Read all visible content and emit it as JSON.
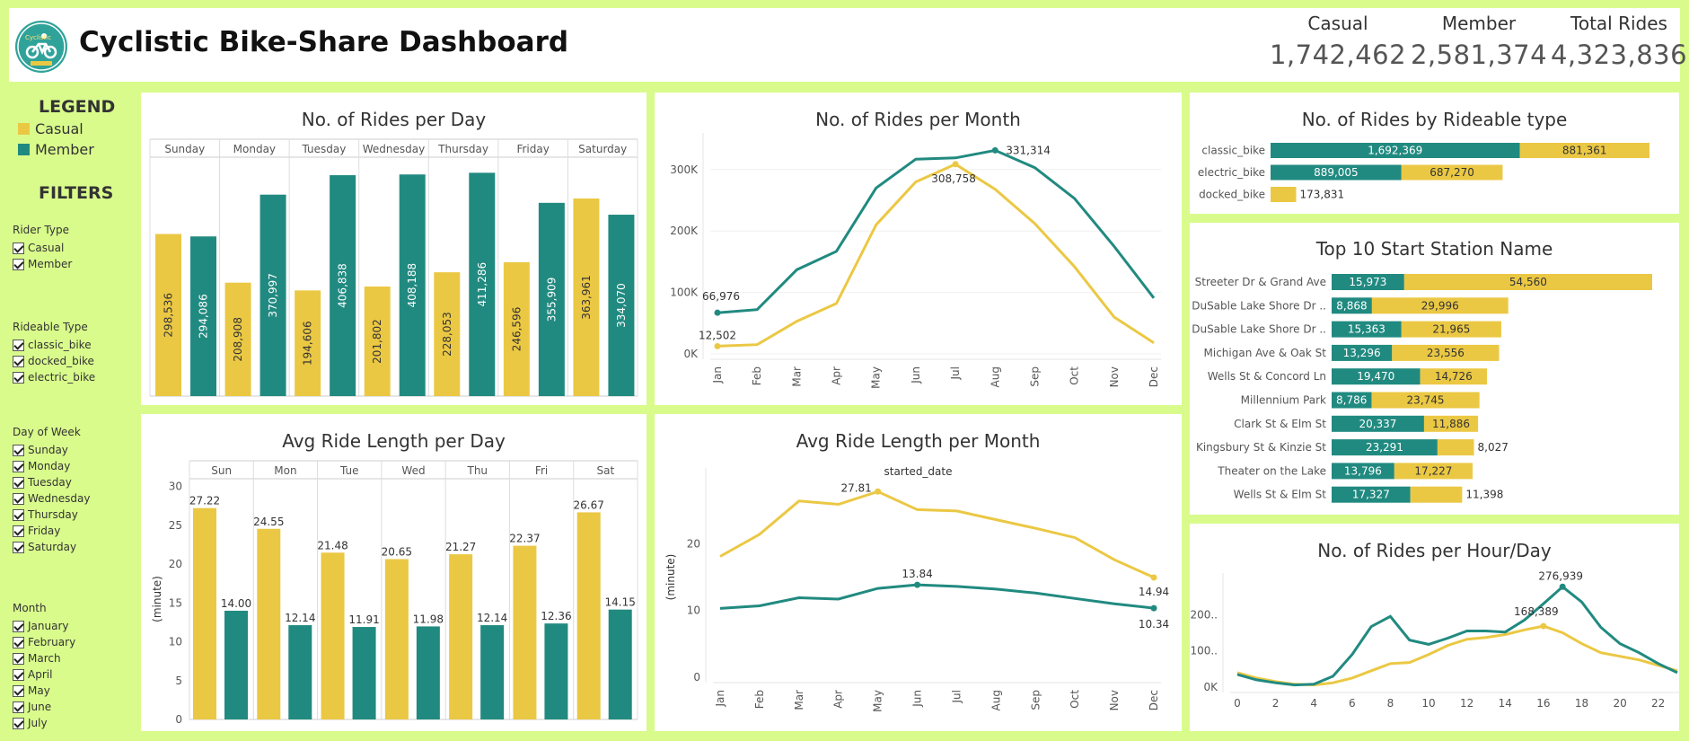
{
  "header": {
    "title": "Cyclistic Bike-Share Dashboard",
    "logo_text": "Cyclistic",
    "kpis": [
      {
        "label": "Casual",
        "value": "1,742,462"
      },
      {
        "label": "Member",
        "value": "2,581,374"
      },
      {
        "label": "Total Rides",
        "value": "4,323,836"
      }
    ]
  },
  "colors": {
    "casual": "#ebc844",
    "member": "#218a80",
    "background": "#d9fb8c"
  },
  "legend": {
    "title": "LEGEND",
    "items": [
      "Casual",
      "Member"
    ]
  },
  "filters": {
    "title": "FILTERS",
    "groups": [
      {
        "title": "Rider Type",
        "items": [
          "Casual",
          "Member"
        ]
      },
      {
        "title": "Rideable Type",
        "items": [
          "classic_bike",
          "docked_bike",
          "electric_bike"
        ]
      },
      {
        "title": "Day of Week",
        "items": [
          "Sunday",
          "Monday",
          "Tuesday",
          "Wednesday",
          "Thursday",
          "Friday",
          "Saturday"
        ]
      },
      {
        "title": "Month",
        "items": [
          "January",
          "February",
          "March",
          "April",
          "May",
          "June",
          "July"
        ]
      }
    ]
  },
  "chart_data": [
    {
      "id": "rides_per_day",
      "type": "bar",
      "title": "No. of Rides per Day",
      "categories": [
        "Sunday",
        "Monday",
        "Tuesday",
        "Wednesday",
        "Thursday",
        "Friday",
        "Saturday"
      ],
      "series": [
        {
          "name": "Casual",
          "values": [
            298536,
            208908,
            194606,
            201802,
            228053,
            246596,
            363961
          ],
          "labels": [
            "298,536",
            "208,908",
            "194,606",
            "201,802",
            "228,053",
            "246,596",
            "363,961"
          ]
        },
        {
          "name": "Member",
          "values": [
            294086,
            370997,
            406838,
            408188,
            411286,
            355909,
            334070
          ],
          "labels": [
            "294,086",
            "370,997",
            "406,838",
            "408,188",
            "411,286",
            "355,909",
            "334,070"
          ]
        }
      ],
      "ylim": [
        0,
        440000
      ]
    },
    {
      "id": "rides_per_month",
      "type": "line",
      "title": "No. of Rides per Month",
      "x": [
        "Jan",
        "Feb",
        "Mar",
        "Apr",
        "May",
        "Jun",
        "Jul",
        "Aug",
        "Sep",
        "Oct",
        "Nov",
        "Dec"
      ],
      "yticks": [
        {
          "v": 0,
          "label": "0K"
        },
        {
          "v": 100000,
          "label": "100K"
        },
        {
          "v": 200000,
          "label": "200K"
        },
        {
          "v": 300000,
          "label": "300K"
        }
      ],
      "ylim": [
        0,
        345000
      ],
      "series": [
        {
          "name": "Casual",
          "values": [
            12502,
            15000,
            53000,
            82000,
            210000,
            280000,
            308758,
            268000,
            212000,
            142000,
            60000,
            18000
          ]
        },
        {
          "name": "Member",
          "values": [
            66976,
            72000,
            137000,
            167000,
            270000,
            317000,
            319000,
            331314,
            303000,
            253000,
            175000,
            91000
          ]
        }
      ],
      "annotations": [
        {
          "series": "Member",
          "index": 0,
          "label": "66,976"
        },
        {
          "series": "Casual",
          "index": 0,
          "label": "12,502"
        },
        {
          "series": "Member",
          "index": 7,
          "label": "331,314"
        },
        {
          "series": "Casual",
          "index": 6,
          "label": "308,758"
        }
      ]
    },
    {
      "id": "rides_by_rideable",
      "type": "bar",
      "orientation": "horizontal",
      "stacked": true,
      "title": "No. of Rides by Rideable type",
      "categories": [
        "classic_bike",
        "electric_bike",
        "docked_bike"
      ],
      "series": [
        {
          "name": "Member",
          "values": [
            1692369,
            889005,
            0
          ],
          "labels": [
            "1,692,369",
            "889,005",
            ""
          ]
        },
        {
          "name": "Casual",
          "values": [
            881361,
            687270,
            173831
          ],
          "labels": [
            "881,361",
            "687,270",
            "173,831"
          ]
        }
      ]
    },
    {
      "id": "top10_start_stations",
      "type": "bar",
      "orientation": "horizontal",
      "stacked": true,
      "title": "Top 10 Start Station Name",
      "categories": [
        "Streeter Dr & Grand Ave",
        "DuSable Lake Shore Dr ..",
        "DuSable Lake Shore Dr ..",
        "Michigan Ave & Oak St",
        "Wells St & Concord Ln",
        "Millennium Park",
        "Clark St & Elm St",
        "Kingsbury St & Kinzie St",
        "Theater on the Lake",
        "Wells St & Elm St"
      ],
      "series": [
        {
          "name": "Member",
          "values": [
            15973,
            8868,
            15363,
            13296,
            19470,
            8786,
            20337,
            23291,
            13796,
            17327
          ],
          "labels": [
            "15,973",
            "8,868",
            "15,363",
            "13,296",
            "19,470",
            "8,786",
            "20,337",
            "23,291",
            "13,796",
            "17,327"
          ]
        },
        {
          "name": "Casual",
          "values": [
            54560,
            29996,
            21965,
            23556,
            14726,
            23745,
            11886,
            8027,
            17227,
            11398
          ],
          "labels": [
            "54,560",
            "29,996",
            "21,965",
            "23,556",
            "14,726",
            "23,745",
            "11,886",
            "8,027",
            "17,227",
            "11,398"
          ]
        }
      ]
    },
    {
      "id": "avg_ride_length_day",
      "type": "bar",
      "title": "Avg Ride Length per Day",
      "ylabel": "(minute)",
      "categories": [
        "Sun",
        "Mon",
        "Tue",
        "Wed",
        "Thu",
        "Fri",
        "Sat"
      ],
      "series": [
        {
          "name": "Casual",
          "values": [
            27.22,
            24.55,
            21.48,
            20.65,
            21.27,
            22.37,
            26.67
          ],
          "labels": [
            "27.22",
            "24.55",
            "21.48",
            "20.65",
            "21.27",
            "22.37",
            "26.67"
          ]
        },
        {
          "name": "Member",
          "values": [
            14.0,
            12.14,
            11.91,
            11.98,
            12.14,
            12.36,
            14.15
          ],
          "labels": [
            "14.00",
            "12.14",
            "11.91",
            "11.98",
            "12.14",
            "12.36",
            "14.15"
          ]
        }
      ],
      "yticks": [
        0,
        5,
        10,
        15,
        20,
        25,
        30
      ],
      "ylim": [
        0,
        31
      ]
    },
    {
      "id": "avg_ride_length_month",
      "type": "line",
      "title": "Avg Ride Length per Month",
      "subtitle": "started_date",
      "ylabel": "(minute)",
      "x": [
        "Jan",
        "Feb",
        "Mar",
        "Apr",
        "May",
        "Jun",
        "Jul",
        "Aug",
        "Sep",
        "Oct",
        "Nov",
        "Dec"
      ],
      "yticks": [
        0,
        10,
        20
      ],
      "ylim": [
        0,
        30
      ],
      "series": [
        {
          "name": "Casual",
          "values": [
            18.1,
            21.4,
            26.4,
            25.9,
            27.81,
            25.1,
            24.9,
            23.6,
            22.3,
            20.9,
            17.6,
            14.94
          ]
        },
        {
          "name": "Member",
          "values": [
            10.3,
            10.7,
            11.9,
            11.7,
            13.3,
            13.84,
            13.6,
            13.2,
            12.6,
            11.8,
            11.0,
            10.34
          ]
        }
      ],
      "annotations": [
        {
          "series": "Casual",
          "index": 4,
          "label": "27.81"
        },
        {
          "series": "Member",
          "index": 5,
          "label": "13.84"
        },
        {
          "series": "Casual",
          "index": 11,
          "label": "14.94"
        },
        {
          "series": "Member",
          "index": 11,
          "label": "10.34"
        }
      ]
    },
    {
      "id": "rides_per_hour",
      "type": "line",
      "title": "No. of Rides per Hour/Day",
      "x": [
        0,
        1,
        2,
        3,
        4,
        5,
        6,
        7,
        8,
        9,
        10,
        11,
        12,
        13,
        14,
        15,
        16,
        17,
        18,
        19,
        20,
        21,
        22,
        23
      ],
      "xticks": [
        0,
        2,
        4,
        6,
        8,
        10,
        12,
        14,
        16,
        18,
        20,
        22
      ],
      "yticks": [
        {
          "v": 0,
          "label": "0K"
        },
        {
          "v": 100000,
          "label": "100.."
        },
        {
          "v": 200000,
          "label": "200.."
        }
      ],
      "ylim": [
        0,
        290000
      ],
      "series": [
        {
          "name": "Casual",
          "values": [
            40000,
            25000,
            15000,
            8000,
            6000,
            12000,
            25000,
            45000,
            65000,
            68000,
            90000,
            115000,
            132000,
            137000,
            145000,
            158000,
            168389,
            150000,
            120000,
            95000,
            85000,
            75000,
            60000,
            45000
          ]
        },
        {
          "name": "Member",
          "values": [
            35000,
            20000,
            12000,
            6000,
            8000,
            30000,
            90000,
            167000,
            195000,
            130000,
            118000,
            135000,
            155000,
            155000,
            152000,
            185000,
            230000,
            276939,
            235000,
            165000,
            120000,
            95000,
            65000,
            40000
          ]
        }
      ],
      "annotations": [
        {
          "series": "Member",
          "index": 17,
          "label": "276,939"
        },
        {
          "series": "Casual",
          "index": 16,
          "label": "168,389"
        }
      ]
    }
  ]
}
